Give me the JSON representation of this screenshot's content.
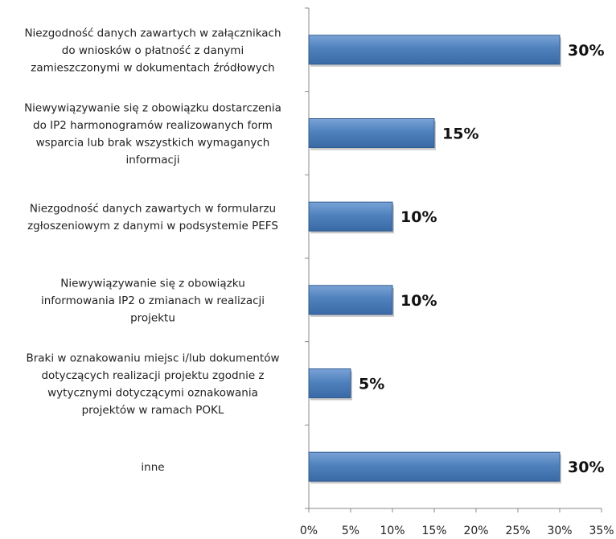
{
  "chart_data": {
    "type": "bar",
    "orientation": "horizontal",
    "categories": [
      "Niezgodność danych zawartych w załącznikach do wniosków o płatność z danymi zamieszczonymi w dokumentach źródłowych",
      "Niewywiązywanie się z obowiązku dostarczenia do IP2 harmonogramów realizowanych form wsparcia lub brak wszystkich wymaganych informacji",
      "Niezgodność danych zawartych w formularzu zgłoszeniowym z danymi w podsystemie PEFS",
      "Niewywiązywanie się z obowiązku informowania IP2 o zmianach w realizacji projektu",
      "Braki w oznakowaniu miejsc i/lub dokumentów dotyczących realizacji projektu zgodnie z wytycznymi dotyczącymi oznakowania projektów w ramach POKL",
      "inne"
    ],
    "category_lines": [
      [
        "Niezgodność danych zawartych w załącznikach",
        "do wniosków o płatność z danymi",
        "zamieszczonymi w dokumentach źródłowych"
      ],
      [
        "Niewywiązywanie się z obowiązku dostarczenia",
        "do IP2 harmonogramów realizowanych form",
        "wsparcia lub brak wszystkich wymaganych",
        "informacji"
      ],
      [
        "Niezgodność danych zawartych w formularzu",
        "zgłoszeniowym z danymi w podsystemie PEFS"
      ],
      [
        "Niewywiązywanie się z obowiązku",
        "informowania IP2 o zmianach w realizacji",
        "projektu"
      ],
      [
        "Braki w oznakowaniu miejsc i/lub dokumentów",
        "dotyczących realizacji projektu zgodnie z",
        "wytycznymi dotyczącymi oznakowania",
        "projektów w ramach POKL"
      ],
      [
        "inne"
      ]
    ],
    "values": [
      30,
      15,
      10,
      10,
      5,
      30
    ],
    "data_labels": [
      "30%",
      "15%",
      "10%",
      "10%",
      "5%",
      "30%"
    ],
    "xlim": [
      0,
      35
    ],
    "x_ticks": [
      0,
      5,
      10,
      15,
      20,
      25,
      30,
      35
    ],
    "x_tick_labels": [
      "0%",
      "5%",
      "10%",
      "15%",
      "20%",
      "25%",
      "30%",
      "35%"
    ],
    "grid": false,
    "legend": "none",
    "bar_color": "#4a7ebb"
  }
}
